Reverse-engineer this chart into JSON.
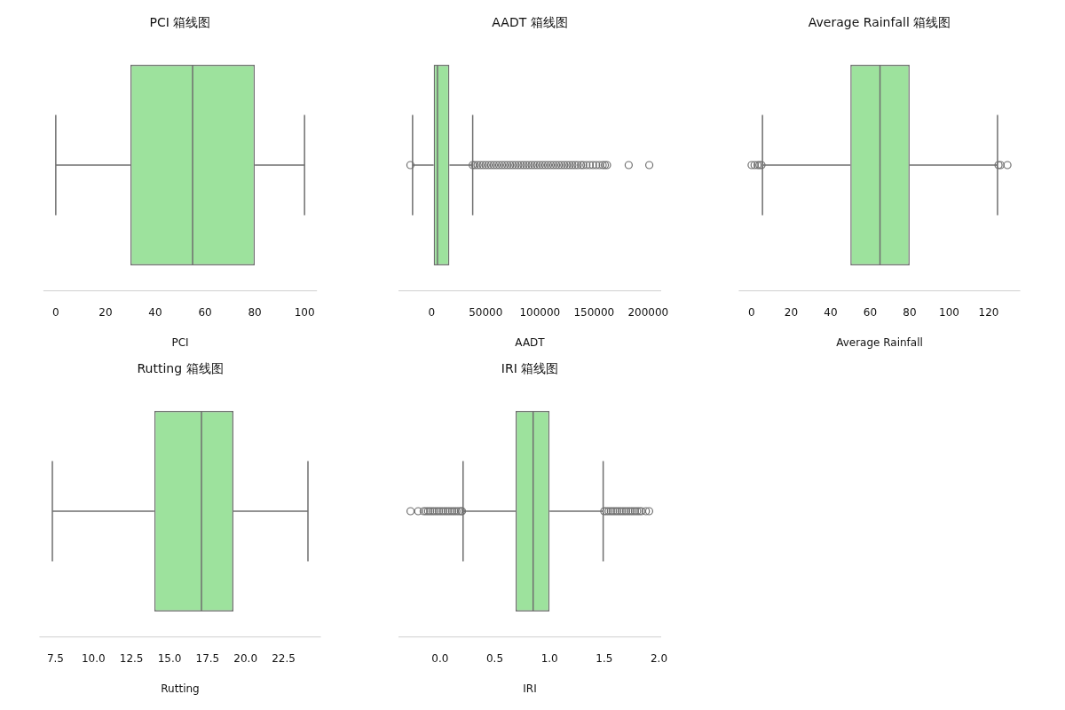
{
  "chart_data": [
    {
      "type": "box",
      "orientation": "horizontal",
      "title": "PCI 箱线图",
      "xlabel": "PCI",
      "categories": [
        null
      ],
      "tick_labels": "x",
      "grid": false,
      "legend": false,
      "xlim": [
        -5,
        105
      ],
      "xticks": [
        0,
        20,
        40,
        60,
        80,
        100
      ],
      "series": [
        {
          "color": "#6f6f6f",
          "boxes": [
            {
              "low": 0,
              "q1": 30,
              "median": 55,
              "q3": 80,
              "high": 100
            }
          ]
        }
      ]
    },
    {
      "type": "box",
      "orientation": "horizontal",
      "title": "AADT 箱线图",
      "xlabel": "AADT",
      "categories": [
        null
      ],
      "tick_labels": "x",
      "grid": false,
      "legend": false,
      "xlim": [
        -30500,
        212000
      ],
      "xticks": [
        0,
        50000,
        100000,
        150000,
        200000
      ],
      "series": [
        {
          "color": "#6f6f6f",
          "boxes": [
            {
              "low": -17500,
              "q1": 2000,
              "median": 5500,
              "q3": 16500,
              "high": 38000,
              "outliers": [
                -19500,
                38000,
                40000,
                42500,
                45000,
                47500,
                50000,
                52500,
                55000,
                57500,
                60000,
                62500,
                65000,
                67500,
                70000,
                72500,
                75000,
                77500,
                80000,
                82500,
                85000,
                87500,
                90000,
                92500,
                95000,
                97500,
                100000,
                102500,
                105000,
                107500,
                110000,
                112500,
                115000,
                117500,
                120000,
                122500,
                125000,
                127500,
                130000,
                132500,
                135000,
                138000,
                140000,
                143000,
                146000,
                149000,
                152000,
                155000,
                158000,
                160000,
                162000,
                182000,
                201000
              ]
            }
          ]
        }
      ]
    },
    {
      "type": "box",
      "orientation": "horizontal",
      "title": "Average Rainfall 箱线图",
      "xlabel": "Average Rainfall",
      "categories": [
        null
      ],
      "tick_labels": "x",
      "grid": false,
      "legend": false,
      "xlim": [
        -6.5,
        136
      ],
      "xticks": [
        0,
        20,
        40,
        60,
        80,
        100,
        120
      ],
      "series": [
        {
          "color": "#6f6f6f",
          "boxes": [
            {
              "low": 5.5,
              "q1": 50,
              "median": 65,
              "q3": 80,
              "high": 124.5,
              "outliers": [
                0,
                1.5,
                3,
                4,
                5,
                125,
                126,
                129.5
              ]
            }
          ]
        }
      ]
    },
    {
      "type": "box",
      "orientation": "horizontal",
      "title": "Rutting 箱线图",
      "xlabel": "Rutting",
      "categories": [
        null
      ],
      "tick_labels": "x",
      "grid": false,
      "legend": false,
      "xlim": [
        6.45,
        24.95
      ],
      "xticks": [
        7.5,
        {
          "value": 10,
          "label": "10.0"
        },
        12.5,
        {
          "value": 15,
          "label": "15.0"
        },
        17.5,
        {
          "value": 20,
          "label": "20.0"
        },
        22.5
      ],
      "series": [
        {
          "color": "#6f6f6f",
          "boxes": [
            {
              "low": 7.3,
              "q1": 14,
              "median": 17.1,
              "q3": 19.2,
              "high": 24.1
            }
          ]
        }
      ]
    },
    {
      "type": "box",
      "orientation": "horizontal",
      "title": "IRI 箱线图",
      "xlabel": "IRI",
      "categories": [
        null
      ],
      "tick_labels": "x",
      "grid": false,
      "legend": false,
      "xlim": [
        -0.38,
        2.02
      ],
      "xticks": [
        {
          "value": 0,
          "label": "0.0"
        },
        0.5,
        {
          "value": 1,
          "label": "1.0"
        },
        1.5,
        {
          "value": 2,
          "label": "2.0"
        }
      ],
      "series": [
        {
          "color": "#6f6f6f",
          "boxes": [
            {
              "low": 0.21,
              "q1": 0.69,
              "median": 0.85,
              "q3": 1.0,
              "high": 1.49,
              "outliers": [
                -0.27,
                -0.2,
                -0.15,
                -0.13,
                -0.11,
                -0.09,
                -0.07,
                -0.05,
                -0.03,
                -0.01,
                0.01,
                0.03,
                0.05,
                0.07,
                0.09,
                0.11,
                0.13,
                0.15,
                0.17,
                0.19,
                0.2,
                1.5,
                1.52,
                1.54,
                1.56,
                1.58,
                1.6,
                1.62,
                1.64,
                1.66,
                1.68,
                1.7,
                1.72,
                1.74,
                1.76,
                1.78,
                1.8,
                1.82,
                1.84,
                1.88,
                1.91
              ]
            }
          ]
        }
      ]
    }
  ]
}
